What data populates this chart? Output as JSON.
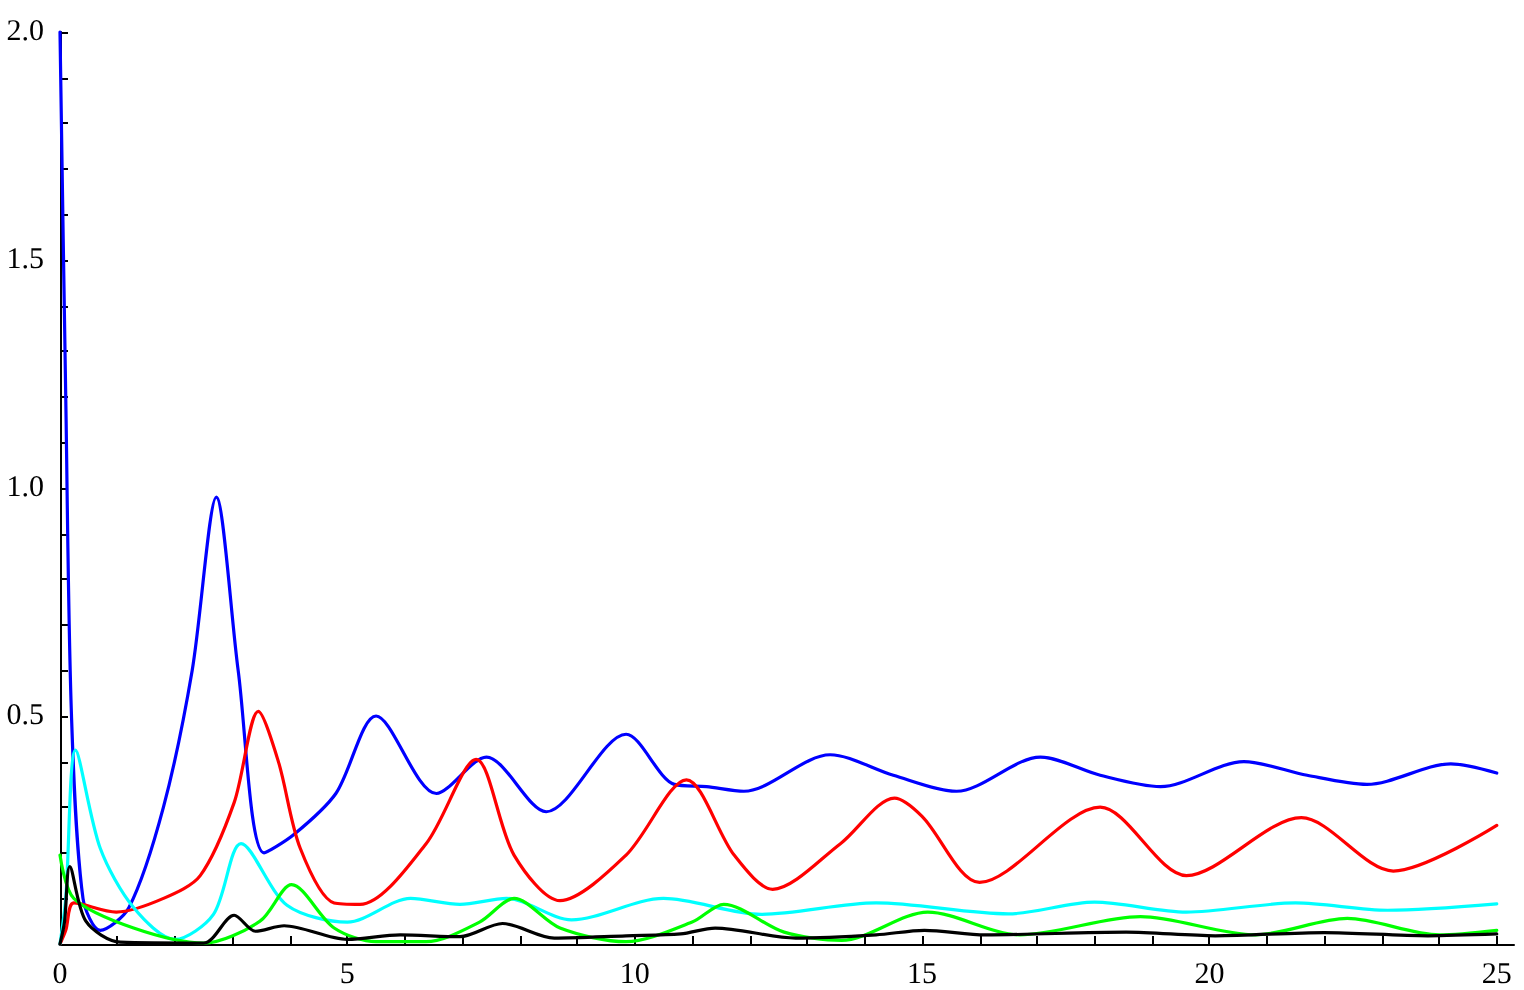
{
  "chart_data": {
    "type": "line",
    "xlim": [
      0,
      25.3
    ],
    "ylim": [
      0,
      2
    ],
    "xticks": [
      0,
      {
        "value": 1,
        "label": null
      },
      {
        "value": 2,
        "label": null
      },
      {
        "value": 3,
        "label": null
      },
      {
        "value": 4,
        "label": null
      },
      5,
      {
        "value": 6,
        "label": null
      },
      {
        "value": 7,
        "label": null
      },
      {
        "value": 8,
        "label": null
      },
      {
        "value": 9,
        "label": null
      },
      10,
      {
        "value": 11,
        "label": null
      },
      {
        "value": 12,
        "label": null
      },
      {
        "value": 13,
        "label": null
      },
      {
        "value": 14,
        "label": null
      },
      15,
      {
        "value": 16,
        "label": null
      },
      {
        "value": 17,
        "label": null
      },
      {
        "value": 18,
        "label": null
      },
      {
        "value": 19,
        "label": null
      },
      20,
      {
        "value": 21,
        "label": null
      },
      {
        "value": 22,
        "label": null
      },
      {
        "value": 23,
        "label": null
      },
      {
        "value": 24,
        "label": null
      },
      25
    ],
    "yticks": [
      {
        "value": 0,
        "label": null
      },
      {
        "value": 0.1,
        "label": null
      },
      {
        "value": 0.2,
        "label": null
      },
      {
        "value": 0.3,
        "label": null
      },
      {
        "value": 0.4,
        "label": null
      },
      0.5,
      {
        "value": 0.6,
        "label": null
      },
      {
        "value": 0.7,
        "label": null
      },
      {
        "value": 0.8,
        "label": null
      },
      {
        "value": 0.9,
        "label": null
      },
      {
        "value": 1,
        "label": "1.0"
      },
      {
        "value": 1.1,
        "label": null
      },
      {
        "value": 1.2,
        "label": null
      },
      {
        "value": 1.3,
        "label": null
      },
      {
        "value": 1.4,
        "label": null
      },
      1.5,
      {
        "value": 1.6,
        "label": null
      },
      {
        "value": 1.7,
        "label": null
      },
      {
        "value": 1.8,
        "label": null
      },
      {
        "value": 1.9,
        "label": null
      },
      {
        "value": 2,
        "label": "2.0"
      }
    ],
    "grid": false,
    "marker": "none",
    "line_style": "solid",
    "series": [
      {
        "color": "#0000ff",
        "x": [
          0,
          0.1,
          0.2,
          0.4,
          0.7,
          1.2,
          1.8,
          2.3,
          2.72,
          3.1,
          3.55,
          4.07,
          4.8,
          5.5,
          6.55,
          7.42,
          8.46,
          9.85,
          10.69,
          11.25,
          11.9,
          13.4,
          14.5,
          15.6,
          17.06,
          18.1,
          19.15,
          20.6,
          21.7,
          22.74,
          24.2,
          25
        ],
        "values": [
          2.0,
          1.2,
          0.5,
          0.1,
          0.03,
          0.08,
          0.3,
          0.6,
          0.98,
          0.6,
          0.2,
          0.24,
          0.33,
          0.5,
          0.33,
          0.41,
          0.29,
          0.46,
          0.35,
          0.345,
          0.335,
          0.415,
          0.37,
          0.335,
          0.41,
          0.37,
          0.345,
          0.4,
          0.37,
          0.35,
          0.395,
          0.375
        ]
      },
      {
        "color": "#ff0000",
        "x": [
          0,
          0.1,
          0.24,
          0.98,
          1.8,
          2.44,
          3.03,
          3.45,
          3.8,
          4.18,
          4.77,
          5.22,
          6.37,
          7.24,
          7.9,
          8.7,
          9.85,
          10.9,
          11.73,
          12.4,
          13.58,
          14.52,
          15.0,
          16.0,
          18.1,
          19.6,
          21.6,
          23.2,
          25
        ],
        "values": [
          0,
          0.03,
          0.09,
          0.07,
          0.1,
          0.15,
          0.31,
          0.51,
          0.4,
          0.21,
          0.09,
          0.087,
          0.22,
          0.405,
          0.195,
          0.095,
          0.195,
          0.36,
          0.195,
          0.12,
          0.22,
          0.32,
          0.28,
          0.135,
          0.3,
          0.15,
          0.277,
          0.16,
          0.26
        ]
      },
      {
        "color": "#00ffff",
        "x": [
          0,
          0.1,
          0.27,
          0.7,
          1.28,
          2.0,
          2.67,
          3.15,
          3.95,
          5.0,
          6.1,
          6.96,
          7.77,
          8.9,
          10.5,
          12.2,
          14.2,
          16.5,
          18.0,
          19.6,
          21.5,
          23.1,
          25
        ],
        "values": [
          0,
          0.1,
          0.425,
          0.21,
          0.08,
          0.01,
          0.065,
          0.22,
          0.085,
          0.048,
          0.1,
          0.087,
          0.1,
          0.053,
          0.1,
          0.065,
          0.09,
          0.066,
          0.092,
          0.07,
          0.09,
          0.074,
          0.088
        ]
      },
      {
        "color": "#00ff00",
        "x": [
          0,
          0.24,
          1.28,
          2.5,
          3.48,
          4.03,
          4.77,
          5.5,
          6.37,
          7.3,
          7.9,
          8.7,
          9.85,
          11.0,
          11.55,
          12.6,
          13.6,
          15.1,
          16.7,
          18.8,
          20.8,
          22.4,
          24.0,
          25
        ],
        "values": [
          0.195,
          0.1,
          0.035,
          0.002,
          0.05,
          0.13,
          0.035,
          0.005,
          0.005,
          0.048,
          0.1,
          0.035,
          0.005,
          0.048,
          0.087,
          0.026,
          0.008,
          0.07,
          0.02,
          0.06,
          0.02,
          0.056,
          0.02,
          0.03
        ]
      },
      {
        "color": "#000000",
        "x": [
          0,
          0.08,
          0.17,
          0.45,
          1.05,
          2.5,
          3.03,
          3.4,
          3.9,
          5.0,
          5.92,
          6.96,
          7.7,
          8.6,
          9.85,
          10.8,
          11.4,
          12.8,
          14.2,
          15.04,
          16.1,
          18.55,
          20.1,
          22.0,
          23.8,
          25
        ],
        "values": [
          0,
          0.05,
          0.17,
          0.05,
          0.004,
          0.002,
          0.063,
          0.028,
          0.04,
          0.01,
          0.02,
          0.016,
          0.045,
          0.013,
          0.018,
          0.022,
          0.035,
          0.013,
          0.02,
          0.03,
          0.02,
          0.026,
          0.018,
          0.025,
          0.018,
          0.022
        ]
      }
    ]
  }
}
